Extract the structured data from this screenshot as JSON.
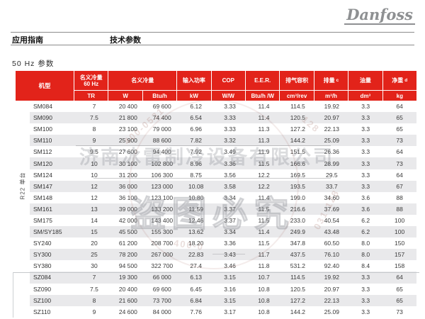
{
  "page": {
    "brand": "Danfoss",
    "nav": {
      "left": "应用指南",
      "right": "技术参数"
    },
    "section_title": "50 Hz 参数"
  },
  "colors": {
    "header_red": "#E2231A",
    "stripe_gray": "#E9E9EB"
  },
  "table": {
    "group_label": "R22 单台",
    "header": {
      "model": "机型",
      "cooling60": {
        "line1": "名义冷量",
        "line2": "60 Hz",
        "unit": "TR"
      },
      "cooling": {
        "label": "名义冷量",
        "unit_w": "W",
        "unit_btuh": "Btu/h"
      },
      "power": {
        "label": "输入功率",
        "unit": "kW"
      },
      "cop": {
        "label": "COP",
        "unit": "W/W"
      },
      "eer": {
        "label": "E.E.R.",
        "unit": "Btu/h /W"
      },
      "disp_volume": {
        "label": "排气容积",
        "unit": "cm³/rev"
      },
      "displacement": {
        "label": "排量",
        "sup": "c",
        "unit": "m³/h"
      },
      "oil": {
        "label": "油量",
        "unit": "dm³"
      },
      "weight": {
        "label": "净重",
        "sup": "d",
        "unit": "kg"
      }
    },
    "group_split_after": 15,
    "rows": [
      {
        "model": "SM084",
        "values": [
          "7",
          "20 400",
          "69 600",
          "6.12",
          "3.33",
          "11.4",
          "114.5",
          "19.92",
          "3.3",
          "64"
        ]
      },
      {
        "model": "SM090",
        "values": [
          "7.5",
          "21 800",
          "74 400",
          "6.54",
          "3.33",
          "11.4",
          "120.5",
          "20.97",
          "3.3",
          "65"
        ]
      },
      {
        "model": "SM100",
        "values": [
          "8",
          "23 100",
          "79 000",
          "6.96",
          "3.33",
          "11.3",
          "127.2",
          "22.13",
          "3.3",
          "65"
        ]
      },
      {
        "model": "SM110",
        "values": [
          "9",
          "25 900",
          "88 600",
          "7.82",
          "3.32",
          "11.3",
          "144.2",
          "25.09",
          "3.3",
          "73"
        ]
      },
      {
        "model": "SM112",
        "values": [
          "9.5",
          "27 600",
          "94 400",
          "7.92",
          "3.49",
          "11.9",
          "151.5",
          "26.36",
          "3.3",
          "64"
        ]
      },
      {
        "model": "SM120",
        "values": [
          "10",
          "30 100",
          "102 800",
          "8.96",
          "3.36",
          "11.5",
          "166.6",
          "28.99",
          "3.3",
          "73"
        ]
      },
      {
        "model": "SM124",
        "values": [
          "10",
          "31 200",
          "106 300",
          "8.75",
          "3.56",
          "12.2",
          "169.5",
          "29.5",
          "3.3",
          "64"
        ]
      },
      {
        "model": "SM147",
        "values": [
          "12",
          "36 000",
          "123 000",
          "10.08",
          "3.58",
          "12.2",
          "193.5",
          "33.7",
          "3.3",
          "67"
        ]
      },
      {
        "model": "SM148",
        "values": [
          "12",
          "36 100",
          "123 100",
          "10.80",
          "3.34",
          "11.4",
          "199.0",
          "34.60",
          "3.6",
          "88"
        ]
      },
      {
        "model": "SM161",
        "values": [
          "13",
          "39 000",
          "133 200",
          "11.59",
          "3.37",
          "11.5",
          "216.6",
          "37.69",
          "3.6",
          "88"
        ]
      },
      {
        "model": "SM175",
        "values": [
          "14",
          "42 000",
          "143 400",
          "12.46",
          "3.37",
          "11.5",
          "233.0",
          "40.54",
          "6.2",
          "100"
        ]
      },
      {
        "model": "SM/SY185",
        "values": [
          "15",
          "45 500",
          "155 300",
          "13.62",
          "3.34",
          "11.4",
          "249.9",
          "43.48",
          "6.2",
          "100"
        ]
      },
      {
        "model": "SY240",
        "values": [
          "20",
          "61 200",
          "208 700",
          "18.20",
          "3.36",
          "11.5",
          "347.8",
          "60.50",
          "8.0",
          "150"
        ]
      },
      {
        "model": "SY300",
        "values": [
          "25",
          "78 200",
          "267 000",
          "22.83",
          "3.43",
          "11.7",
          "437.5",
          "76.10",
          "8.0",
          "157"
        ]
      },
      {
        "model": "SY380",
        "values": [
          "30",
          "94 500",
          "322 700",
          "27.4",
          "3.46",
          "11.8",
          "531.2",
          "92.40",
          "8.4",
          "158"
        ]
      },
      {
        "model": "SZ084",
        "values": [
          "7",
          "19 300",
          "66 000",
          "6.13",
          "3.15",
          "10.7",
          "114.5",
          "19.92",
          "3.3",
          "64"
        ]
      },
      {
        "model": "SZ090",
        "values": [
          "7.5",
          "20 400",
          "69 600",
          "6.45",
          "3.16",
          "10.8",
          "120.5",
          "20.97",
          "3.3",
          "65"
        ]
      },
      {
        "model": "SZ100",
        "values": [
          "8",
          "21 600",
          "73 700",
          "6.84",
          "3.15",
          "10.8",
          "127.2",
          "22.13",
          "3.3",
          "65"
        ]
      },
      {
        "model": "SZ110",
        "values": [
          "9",
          "24 600",
          "84 000",
          "7.76",
          "3.17",
          "10.8",
          "144.2",
          "25.09",
          "3.3",
          "73"
        ]
      }
    ]
  },
  "watermark": {
    "company": "济南冰雷制冷设备有限公司",
    "notice": "盗图必究",
    "digits1": "400-0531",
    "digits2": "128",
    "digits3": "031-128",
    "digits4": "400-0"
  }
}
